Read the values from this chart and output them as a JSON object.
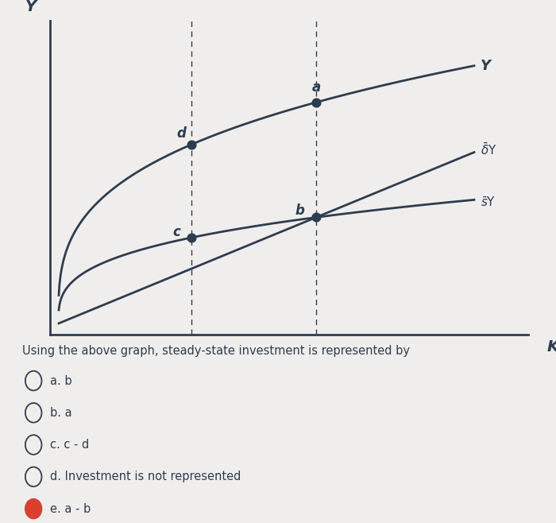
{
  "bg_color": "#f0eeec",
  "curve_color": "#2d3d50",
  "text_color": "#2d3d50",
  "dot_color": "#2d3d50",
  "selected_dot_color": "#d94030",
  "k1": 0.32,
  "k_star": 0.62,
  "x_max": 1.0,
  "question_text": "Using the above graph, steady-state investment is represented by",
  "options": [
    "a. b",
    "b. a",
    "c. c - d",
    "d. Investment is not represented",
    "e. a - b"
  ],
  "selected_option": 4,
  "ylabel_text": "Y",
  "xlabel_text": "K"
}
